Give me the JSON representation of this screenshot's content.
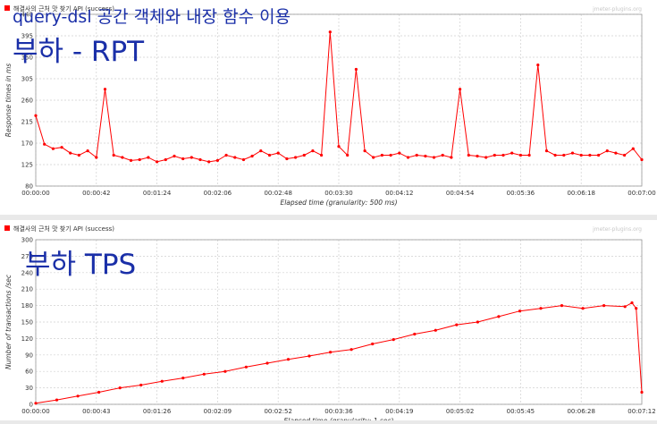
{
  "page": {
    "main_caption": "query-dsl 공간 객체와 내장 함수 이용",
    "rpt_caption": "부하 - RPT",
    "tps_caption": "부하 TPS"
  },
  "colors": {
    "series": "#ff0000",
    "grid": "#d0d0d0",
    "caption": "#1a2fa8",
    "watermark": "#c8c8c8"
  },
  "chart_data": [
    {
      "type": "line",
      "title": "",
      "legend": "해결사의 근처 맛 찾기 API (success)",
      "watermark": "jmeter-plugins.org",
      "xlabel": "Elapsed time (granularity: 500 ms)",
      "ylabel": "Response times in ms",
      "ylim": [
        80,
        470
      ],
      "y_ticks": [
        "80",
        "125",
        "170",
        "215",
        "260",
        "305",
        "350",
        "395",
        "440"
      ],
      "x_ticks": [
        "00:00:00",
        "00:00:42",
        "00:01:24",
        "00:02:06",
        "00:02:48",
        "00:03:30",
        "00:04:12",
        "00:04:54",
        "00:05:36",
        "00:06:18",
        "00:07:00"
      ],
      "xlim_sec": [
        0,
        420
      ],
      "grid": true,
      "legend_position": "top-left",
      "series": [
        {
          "name": "해결사의 근처 맛 찾기 API (success)",
          "x": [
            0,
            6,
            12,
            18,
            24,
            30,
            36,
            42,
            48,
            54,
            60,
            66,
            72,
            78,
            84,
            90,
            96,
            102,
            108,
            114,
            120,
            126,
            132,
            138,
            144,
            150,
            156,
            162,
            168,
            174,
            180,
            186,
            192,
            198,
            204,
            210,
            216,
            222,
            228,
            234,
            240,
            246,
            252,
            258,
            264,
            270,
            276,
            282,
            288,
            294,
            300,
            306,
            312,
            318,
            324,
            330,
            336,
            342,
            348,
            354,
            360,
            366,
            372,
            378,
            384,
            390,
            396,
            402,
            408,
            414,
            420
          ],
          "y": [
            240,
            175,
            165,
            168,
            155,
            150,
            160,
            145,
            300,
            150,
            145,
            138,
            140,
            145,
            135,
            140,
            148,
            142,
            145,
            140,
            135,
            138,
            150,
            145,
            140,
            148,
            160,
            150,
            155,
            142,
            145,
            150,
            160,
            150,
            430,
            170,
            150,
            345,
            160,
            145,
            150,
            150,
            155,
            145,
            150,
            148,
            145,
            150,
            145,
            300,
            150,
            148,
            145,
            150,
            150,
            155,
            150,
            150,
            355,
            160,
            150,
            150,
            155,
            150,
            150,
            150,
            160,
            155,
            150,
            165,
            140
          ]
        }
      ]
    },
    {
      "type": "line",
      "title": "",
      "legend": "해결사의 근처 맛 찾기 API (success)",
      "watermark": "jmeter-plugins.org",
      "xlabel": "Elapsed time (granularity: 1 sec)",
      "ylabel": "Number of transactions /sec",
      "ylim": [
        0,
        300
      ],
      "y_ticks": [
        "0",
        "30",
        "60",
        "90",
        "120",
        "150",
        "180",
        "210",
        "240",
        "270",
        "300"
      ],
      "x_ticks": [
        "00:00:00",
        "00:00:43",
        "00:01:26",
        "00:02:09",
        "00:02:52",
        "00:03:36",
        "00:04:19",
        "00:05:02",
        "00:05:45",
        "00:06:28",
        "00:07:12"
      ],
      "xlim_sec": [
        0,
        432
      ],
      "grid": true,
      "legend_position": "top-left",
      "series": [
        {
          "name": "해결사의 근처 맛 찾기 API (success)",
          "x": [
            0,
            15,
            30,
            45,
            60,
            75,
            90,
            105,
            120,
            135,
            150,
            165,
            180,
            195,
            210,
            225,
            240,
            255,
            270,
            285,
            300,
            315,
            330,
            345,
            360,
            375,
            390,
            405,
            420,
            425,
            428,
            432
          ],
          "y": [
            2,
            8,
            15,
            22,
            30,
            35,
            42,
            48,
            55,
            60,
            68,
            75,
            82,
            88,
            95,
            100,
            110,
            118,
            128,
            135,
            145,
            150,
            160,
            170,
            175,
            180,
            175,
            180,
            178,
            185,
            175,
            22
          ]
        }
      ]
    }
  ]
}
